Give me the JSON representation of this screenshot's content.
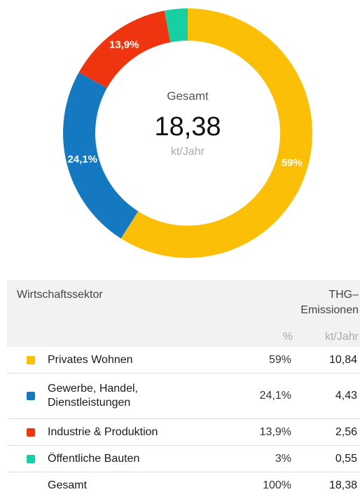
{
  "chart_data": {
    "type": "pie",
    "categories": [
      "Privates Wohnen",
      "Gewerbe, Handel, Dienstleistungen",
      "Industrie & Produktion",
      "Öffentliche Bauten"
    ],
    "values": [
      59,
      24.1,
      13.9,
      3
    ],
    "value_labels": [
      "59%",
      "24,1%",
      "13,9%",
      null
    ],
    "colors": [
      "#fcbf08",
      "#1479c0",
      "#ef3510",
      "#16d0a2"
    ],
    "center_title": "Gesamt",
    "center_value": "18,38",
    "center_unit": "kt/Jahr"
  },
  "table": {
    "sector_header": "Wirtschaftssektor",
    "emissions_header": [
      "THG–",
      "Emissionen"
    ],
    "percent_header": "%",
    "unit_header": "kt/Jahr",
    "rows": [
      {
        "sector": "Privates Wohnen",
        "percent": "59%",
        "value": "10,84"
      },
      {
        "sector": "Gewerbe, Handel, Dienstleistungen",
        "percent": "24,1%",
        "value": "4,43"
      },
      {
        "sector": "Industrie & Produktion",
        "percent": "13,9%",
        "value": "2,56"
      },
      {
        "sector": "Öffentliche Bauten",
        "percent": "3%",
        "value": "0,55"
      },
      {
        "sector": "Gesamt",
        "percent": "100%",
        "value": "18,38"
      }
    ]
  }
}
